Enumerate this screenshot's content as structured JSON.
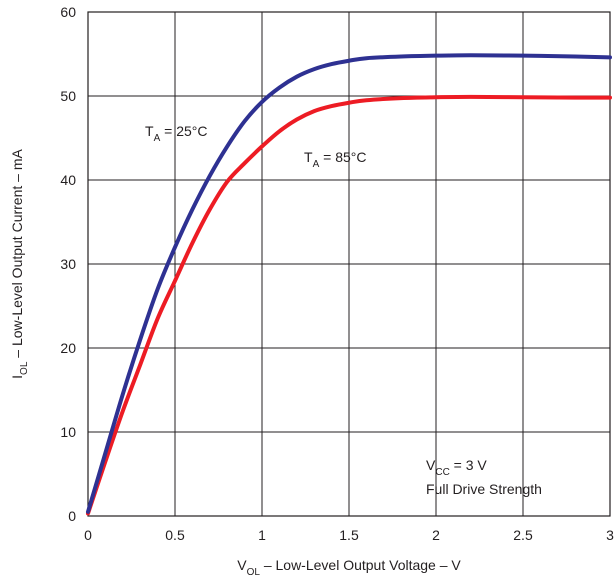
{
  "chart_data": {
    "type": "line",
    "xlabel": {
      "main": "V",
      "sub": "OL",
      "rest": " – Low-Level Output Voltage – V"
    },
    "ylabel": {
      "main": "I",
      "sub": "OL",
      "rest": " – Low-Level Output Current – mA"
    },
    "xlim": [
      0,
      3
    ],
    "ylim": [
      0,
      60
    ],
    "x_ticks": [
      "0",
      "0.5",
      "1",
      "1.5",
      "2",
      "2.5",
      "3"
    ],
    "x_tick_values": [
      0,
      0.5,
      1,
      1.5,
      2,
      2.5,
      3
    ],
    "y_ticks": [
      "0",
      "10",
      "20",
      "30",
      "40",
      "50",
      "60"
    ],
    "y_tick_values": [
      0,
      10,
      20,
      30,
      40,
      50,
      60
    ],
    "grid": true,
    "series": [
      {
        "label": {
          "main": "T",
          "sub": "A",
          "rest": " = 25°C"
        },
        "color": "#2e3192",
        "x": [
          0,
          0.1,
          0.2,
          0.3,
          0.4,
          0.5,
          0.6,
          0.7,
          0.8,
          0.9,
          1.0,
          1.1,
          1.2,
          1.3,
          1.4,
          1.5,
          1.6,
          1.8,
          2.0,
          2.2,
          2.5,
          2.8,
          3.0
        ],
        "y": [
          0.5,
          7.5,
          14.5,
          21.0,
          27.0,
          32.0,
          36.5,
          40.5,
          44.0,
          47.0,
          49.3,
          51.0,
          52.3,
          53.2,
          53.8,
          54.2,
          54.5,
          54.7,
          54.8,
          54.85,
          54.8,
          54.7,
          54.6
        ]
      },
      {
        "label": {
          "main": "T",
          "sub": "A",
          "rest": " = 85°C"
        },
        "color": "#ed1c24",
        "x": [
          0,
          0.1,
          0.2,
          0.3,
          0.4,
          0.5,
          0.6,
          0.7,
          0.8,
          0.9,
          1.0,
          1.1,
          1.2,
          1.3,
          1.4,
          1.5,
          1.6,
          1.8,
          2.0,
          2.2,
          2.5,
          2.8,
          3.0
        ],
        "y": [
          0.3,
          6.5,
          12.5,
          18.0,
          23.5,
          28.0,
          32.5,
          36.5,
          39.8,
          42.0,
          44.0,
          45.8,
          47.2,
          48.2,
          48.8,
          49.2,
          49.5,
          49.75,
          49.85,
          49.9,
          49.85,
          49.8,
          49.8
        ]
      }
    ],
    "annotation": {
      "main": "V",
      "sub": "CC",
      "rest": " = 3 V",
      "line2": "Full Drive Strength"
    }
  }
}
